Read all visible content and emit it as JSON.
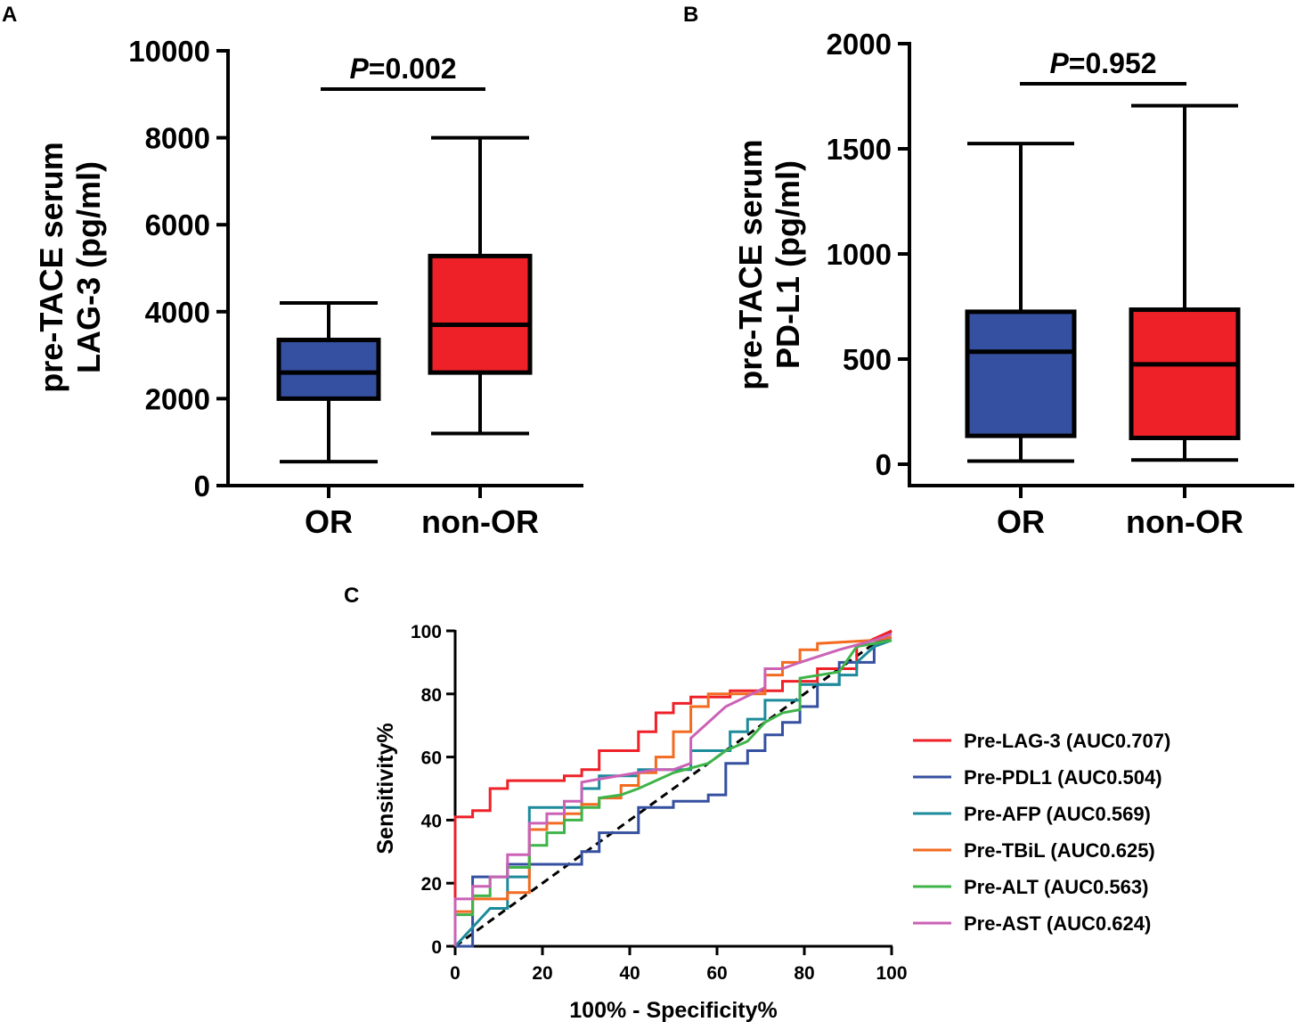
{
  "chart_data": [
    {
      "panel": "A",
      "type": "box",
      "ylabel_lines": [
        "pre-TACE serum",
        "LAG-3 (pg/ml)"
      ],
      "ylim": [
        0,
        10000
      ],
      "yticks": [
        0,
        2000,
        4000,
        6000,
        8000,
        10000
      ],
      "ytick_labels": [
        "0",
        "2000",
        "4000",
        "6000",
        "8000",
        "10000"
      ],
      "categories": [
        "OR",
        "non-OR"
      ],
      "boxes": [
        {
          "name": "OR",
          "min": 550,
          "q1": 2000,
          "median": 2600,
          "q3": 3350,
          "max": 4200,
          "color": "#3550A0"
        },
        {
          "name": "non-OR",
          "min": 1200,
          "q1": 2600,
          "median": 3700,
          "q3": 5280,
          "max": 8000,
          "color": "#EE2128"
        }
      ],
      "p_label_italic": "P",
      "p_label_value": "=0.002"
    },
    {
      "panel": "B",
      "type": "box",
      "ylabel_lines": [
        "pre-TACE serum",
        "PD-L1 (pg/ml)"
      ],
      "ylim": [
        0,
        2000
      ],
      "yticks": [
        0,
        500,
        1000,
        1500,
        2000
      ],
      "ytick_labels": [
        "0",
        "500",
        "1000",
        "1500",
        "2000"
      ],
      "categories": [
        "OR",
        "non-OR"
      ],
      "boxes": [
        {
          "name": "OR",
          "min": 15,
          "q1": 135,
          "median": 535,
          "q3": 725,
          "max": 1525,
          "color": "#3550A0"
        },
        {
          "name": "non-OR",
          "min": 20,
          "q1": 125,
          "median": 475,
          "q3": 735,
          "max": 1705,
          "color": "#EE2128"
        }
      ],
      "p_label_italic": "P",
      "p_label_value": "=0.952"
    },
    {
      "panel": "C",
      "type": "line",
      "xlabel": "100% - Specificity%",
      "ylabel": "Sensitivity%",
      "xlim": [
        0,
        100
      ],
      "ylim": [
        0,
        100
      ],
      "ticks": [
        0,
        20,
        40,
        60,
        80,
        100
      ],
      "tick_labels": [
        "0",
        "20",
        "40",
        "60",
        "80",
        "100"
      ],
      "reference_line": [
        [
          0,
          0
        ],
        [
          100,
          100
        ]
      ],
      "series": [
        {
          "name": "Pre-LAG-3 (AUC0.707)",
          "color": "#EE2128",
          "x": [
            0,
            0,
            4,
            4,
            8,
            8,
            12,
            12,
            25,
            25,
            29,
            29,
            33,
            33,
            42,
            42,
            46,
            46,
            50,
            50,
            54,
            54,
            63,
            63,
            75,
            75,
            83,
            83,
            92,
            92,
            100
          ],
          "y": [
            0,
            41,
            41,
            43,
            43,
            50,
            50,
            52.5,
            52.5,
            54,
            54,
            56,
            56,
            62,
            62,
            68,
            68,
            74,
            74,
            77,
            77,
            79,
            79,
            81,
            81,
            84,
            84,
            88,
            88,
            95,
            100
          ]
        },
        {
          "name": "Pre-PDL1 (AUC0.504)",
          "color": "#3550A0",
          "x": [
            0,
            4,
            4,
            12,
            12,
            29,
            29,
            33,
            33,
            42,
            42,
            50,
            50,
            58,
            58,
            62,
            62,
            67,
            67,
            71,
            71,
            75,
            75,
            79,
            79,
            83,
            83,
            88,
            88,
            96,
            96,
            100
          ],
          "y": [
            0,
            0,
            22,
            22,
            26,
            26,
            30,
            30,
            36,
            36,
            44,
            44,
            46,
            46,
            48,
            48,
            58,
            58,
            62,
            62,
            67,
            67,
            71,
            71,
            76,
            76,
            83,
            83,
            90,
            90,
            96,
            98
          ]
        },
        {
          "name": "Pre-AFP (AUC0.569)",
          "color": "#1C8B9B",
          "x": [
            0,
            8,
            12,
            12,
            17,
            17,
            29,
            29,
            33,
            33,
            42,
            42,
            54,
            54,
            63,
            63,
            67,
            67,
            71,
            71,
            79,
            79,
            88,
            88,
            92,
            92,
            96,
            100
          ],
          "y": [
            0,
            12,
            12,
            22,
            22,
            44,
            44,
            50,
            50,
            54,
            54,
            56,
            56,
            62,
            62,
            68,
            68,
            72,
            72,
            78,
            78,
            83,
            83,
            86,
            86,
            90,
            95,
            97
          ]
        },
        {
          "name": "Pre-TBiL (AUC0.625)",
          "color": "#F26B21",
          "x": [
            0,
            0,
            4,
            4,
            12,
            12,
            17,
            17,
            21,
            21,
            25,
            25,
            29,
            29,
            33,
            33,
            38,
            38,
            42,
            42,
            46,
            46,
            50,
            50,
            54,
            54,
            58,
            58,
            71,
            71,
            75,
            75,
            79,
            79,
            83,
            83,
            96,
            100
          ],
          "y": [
            0,
            11,
            11,
            15,
            15,
            17,
            17,
            37,
            37,
            39,
            39,
            42,
            42,
            45,
            45,
            47,
            47,
            51,
            51,
            55,
            55,
            60,
            60,
            68,
            68,
            76,
            76,
            80,
            80,
            86,
            86,
            90,
            90,
            94,
            94,
            96,
            97,
            98
          ]
        },
        {
          "name": "Pre-ALT (AUC0.563)",
          "color": "#3FB449",
          "x": [
            0,
            0,
            4,
            4,
            8,
            8,
            12,
            12,
            17,
            17,
            21,
            21,
            25,
            25,
            29,
            29,
            33,
            33,
            38,
            42,
            50,
            58,
            62,
            67,
            71,
            75,
            79,
            79,
            88,
            92,
            100
          ],
          "y": [
            0,
            10,
            10,
            16,
            16,
            22,
            22,
            25,
            25,
            32,
            32,
            36,
            36,
            40,
            40,
            44,
            44,
            47,
            48,
            50,
            55,
            58,
            62,
            65,
            71,
            74,
            75,
            85,
            87,
            95,
            97
          ]
        },
        {
          "name": "Pre-AST (AUC0.624)",
          "color": "#CB62B6",
          "x": [
            0,
            0,
            4,
            4,
            8,
            8,
            12,
            12,
            17,
            17,
            21,
            21,
            25,
            25,
            29,
            29,
            33,
            46,
            50,
            54,
            54,
            58,
            62,
            71,
            71,
            75,
            79,
            88,
            96,
            100
          ],
          "y": [
            0,
            15,
            15,
            19,
            19,
            22,
            22,
            29,
            29,
            39,
            39,
            42,
            42,
            46,
            46,
            52,
            53,
            56,
            56,
            58,
            66,
            71,
            76,
            82,
            88,
            88,
            90,
            94,
            97,
            99
          ]
        }
      ]
    }
  ]
}
